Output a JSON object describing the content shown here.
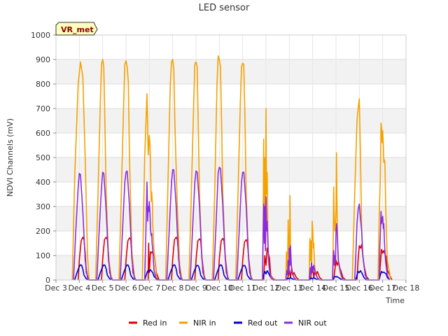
{
  "chart_data": {
    "type": "line",
    "title": "LED sensor",
    "xlabel": "Time",
    "ylabel": "NDVI Channels (mV)",
    "badge": "VR_met",
    "ylim": [
      0,
      1000
    ],
    "yticks": [
      0,
      100,
      200,
      300,
      400,
      500,
      600,
      700,
      800,
      900,
      1000
    ],
    "xlim": [
      3,
      18
    ],
    "xticks": [
      {
        "v": 3,
        "label": "Dec 3"
      },
      {
        "v": 4,
        "label": "Dec 4"
      },
      {
        "v": 5,
        "label": "Dec 5"
      },
      {
        "v": 6,
        "label": "Dec 6"
      },
      {
        "v": 7,
        "label": "Dec 7"
      },
      {
        "v": 8,
        "label": "Dec 8"
      },
      {
        "v": 9,
        "label": "Dec 9"
      },
      {
        "v": 10,
        "label": "Dec 10"
      },
      {
        "v": 11,
        "label": "Dec 11"
      },
      {
        "v": 12,
        "label": "Dec 12"
      },
      {
        "v": 13,
        "label": "Dec 13"
      },
      {
        "v": 14,
        "label": "Dec 14"
      },
      {
        "v": 15,
        "label": "Dec 15"
      },
      {
        "v": 16,
        "label": "Dec 16"
      },
      {
        "v": 17,
        "label": "Dec 17"
      },
      {
        "v": 18,
        "label": "Dec 18"
      }
    ],
    "legend_position": "bottom",
    "series": [
      {
        "name": "Red in",
        "color": "#dd0000",
        "x": [
          3.95,
          4.0,
          4.08,
          4.15,
          4.2,
          4.25,
          4.3,
          4.42,
          4.95,
          5.0,
          5.08,
          5.15,
          5.2,
          5.25,
          5.3,
          5.42,
          5.95,
          6.0,
          6.08,
          6.15,
          6.2,
          6.25,
          6.3,
          6.42,
          6.95,
          6.97,
          7.0,
          7.05,
          7.08,
          7.12,
          7.17,
          7.22,
          7.3,
          7.42,
          7.95,
          8.0,
          8.08,
          8.15,
          8.2,
          8.25,
          8.3,
          8.42,
          8.95,
          9.0,
          9.08,
          9.15,
          9.2,
          9.25,
          9.3,
          9.42,
          9.95,
          10.0,
          10.08,
          10.15,
          10.2,
          10.25,
          10.3,
          10.42,
          10.95,
          11.0,
          11.08,
          11.15,
          11.2,
          11.25,
          11.3,
          11.42,
          11.9,
          11.95,
          12.0,
          12.05,
          12.1,
          12.15,
          12.2,
          12.3,
          12.42,
          12.9,
          12.95,
          13.0,
          13.05,
          13.1,
          13.15,
          13.2,
          13.3,
          13.42,
          13.9,
          13.95,
          14.0,
          14.05,
          14.1,
          14.15,
          14.2,
          14.3,
          14.42,
          14.9,
          14.95,
          15.0,
          15.05,
          15.1,
          15.15,
          15.2,
          15.3,
          15.42,
          15.9,
          15.95,
          16.0,
          16.05,
          16.1,
          16.15,
          16.2,
          16.3,
          16.42,
          16.85,
          16.9,
          16.95,
          17.0,
          17.05,
          17.1,
          17.15,
          17.2,
          17.4
        ],
        "y": [
          0,
          80,
          160,
          175,
          165,
          110,
          30,
          0,
          0,
          85,
          165,
          175,
          165,
          110,
          30,
          0,
          0,
          80,
          160,
          172,
          165,
          110,
          30,
          0,
          0,
          150,
          30,
          115,
          110,
          115,
          105,
          100,
          30,
          0,
          0,
          85,
          165,
          175,
          165,
          110,
          30,
          0,
          0,
          80,
          160,
          168,
          160,
          105,
          30,
          0,
          0,
          85,
          160,
          170,
          160,
          105,
          30,
          0,
          0,
          80,
          155,
          165,
          155,
          100,
          30,
          0,
          0,
          100,
          60,
          130,
          110,
          90,
          20,
          5,
          0,
          0,
          15,
          40,
          10,
          50,
          20,
          30,
          10,
          0,
          0,
          30,
          50,
          10,
          40,
          20,
          35,
          10,
          0,
          0,
          40,
          80,
          60,
          75,
          50,
          40,
          10,
          0,
          0,
          90,
          140,
          130,
          145,
          100,
          60,
          15,
          0,
          0,
          60,
          125,
          110,
          120,
          105,
          95,
          40,
          0
        ]
      },
      {
        "name": "NIR in",
        "color": "#f5a100",
        "x": [
          3.7,
          3.8,
          3.95,
          4.05,
          4.15,
          4.25,
          4.35,
          4.42,
          4.7,
          4.8,
          4.9,
          4.95,
          5.0,
          5.05,
          5.1,
          5.15,
          5.25,
          5.35,
          5.42,
          5.7,
          5.8,
          5.9,
          5.95,
          6.0,
          6.05,
          6.1,
          6.15,
          6.25,
          6.35,
          6.42,
          6.7,
          6.8,
          6.9,
          6.95,
          6.98,
          7.0,
          7.03,
          7.05,
          7.08,
          7.1,
          7.13,
          7.15,
          7.2,
          7.3,
          7.35,
          7.7,
          7.8,
          7.9,
          7.95,
          8.0,
          8.05,
          8.1,
          8.2,
          8.3,
          8.4,
          8.7,
          8.8,
          8.9,
          8.95,
          9.0,
          9.05,
          9.1,
          9.15,
          9.25,
          9.35,
          9.42,
          9.7,
          9.8,
          9.9,
          9.95,
          10.0,
          10.05,
          10.1,
          10.15,
          10.25,
          10.35,
          10.42,
          10.7,
          10.8,
          10.9,
          10.95,
          11.0,
          11.05,
          11.1,
          11.15,
          11.25,
          11.35,
          11.42,
          11.85,
          11.88,
          11.9,
          11.92,
          11.95,
          11.97,
          12.0,
          12.02,
          12.05,
          12.08,
          12.12,
          12.18,
          12.3,
          12.85,
          12.88,
          12.9,
          12.92,
          12.95,
          12.98,
          13.0,
          13.03,
          13.05,
          13.08,
          13.12,
          13.2,
          13.3,
          13.85,
          13.88,
          13.9,
          13.93,
          13.95,
          13.98,
          14.0,
          14.03,
          14.05,
          14.08,
          14.12,
          14.2,
          14.3,
          14.85,
          14.88,
          14.9,
          14.92,
          14.95,
          14.98,
          15.0,
          15.02,
          15.05,
          15.08,
          15.12,
          15.2,
          15.3,
          15.7,
          15.8,
          15.9,
          15.95,
          16.0,
          16.05,
          16.1,
          16.15,
          16.25,
          16.35,
          16.8,
          16.85,
          16.9,
          16.93,
          16.95,
          16.98,
          17.0,
          17.03,
          17.05,
          17.08,
          17.1,
          17.13,
          17.2,
          17.35
        ],
        "y": [
          0,
          420,
          800,
          890,
          830,
          500,
          100,
          0,
          0,
          350,
          720,
          880,
          900,
          870,
          620,
          350,
          100,
          20,
          0,
          0,
          350,
          720,
          880,
          895,
          870,
          810,
          500,
          120,
          20,
          0,
          0,
          500,
          760,
          510,
          560,
          590,
          550,
          480,
          320,
          360,
          310,
          220,
          120,
          20,
          0,
          0,
          400,
          800,
          890,
          900,
          860,
          620,
          300,
          60,
          0,
          0,
          350,
          720,
          880,
          890,
          870,
          620,
          350,
          100,
          20,
          0,
          0,
          350,
          800,
          915,
          900,
          870,
          620,
          350,
          100,
          20,
          0,
          0,
          350,
          720,
          870,
          885,
          880,
          650,
          350,
          100,
          20,
          0,
          0,
          250,
          575,
          200,
          500,
          120,
          700,
          350,
          440,
          180,
          60,
          20,
          0,
          0,
          115,
          80,
          40,
          245,
          100,
          40,
          345,
          120,
          60,
          30,
          10,
          0,
          0,
          170,
          80,
          160,
          40,
          240,
          210,
          130,
          150,
          60,
          30,
          10,
          0,
          0,
          150,
          380,
          280,
          200,
          220,
          280,
          520,
          240,
          130,
          60,
          20,
          0,
          0,
          350,
          650,
          700,
          740,
          500,
          200,
          100,
          20,
          0,
          0,
          250,
          420,
          640,
          620,
          560,
          610,
          540,
          480,
          490,
          470,
          300,
          80,
          0
        ]
      },
      {
        "name": "Red out",
        "color": "#0000cc",
        "x": [
          3.8,
          3.9,
          4.0,
          4.05,
          4.1,
          4.15,
          4.2,
          4.3,
          4.42,
          4.8,
          4.9,
          5.0,
          5.05,
          5.1,
          5.15,
          5.2,
          5.3,
          5.42,
          5.8,
          5.9,
          6.0,
          6.05,
          6.1,
          6.15,
          6.2,
          6.3,
          6.42,
          6.8,
          6.9,
          6.95,
          7.0,
          7.05,
          7.1,
          7.15,
          7.2,
          7.3,
          7.42,
          7.8,
          7.9,
          8.0,
          8.05,
          8.1,
          8.15,
          8.2,
          8.3,
          8.42,
          8.8,
          8.9,
          9.0,
          9.05,
          9.1,
          9.15,
          9.2,
          9.3,
          9.42,
          9.8,
          9.9,
          10.0,
          10.05,
          10.1,
          10.15,
          10.2,
          10.3,
          10.42,
          10.8,
          10.9,
          11.0,
          11.05,
          11.1,
          11.15,
          11.2,
          11.3,
          11.42,
          11.85,
          11.9,
          11.95,
          12.0,
          12.05,
          12.1,
          12.15,
          12.2,
          12.3,
          12.85,
          12.9,
          12.95,
          13.0,
          13.05,
          13.1,
          13.15,
          13.2,
          13.3,
          13.85,
          13.9,
          13.95,
          14.0,
          14.05,
          14.1,
          14.15,
          14.2,
          14.3,
          14.85,
          14.9,
          14.95,
          15.0,
          15.05,
          15.1,
          15.15,
          15.2,
          15.3,
          15.85,
          15.9,
          15.95,
          16.0,
          16.05,
          16.1,
          16.15,
          16.2,
          16.3,
          16.85,
          16.9,
          16.95,
          17.0,
          17.05,
          17.1,
          17.15,
          17.2,
          17.3
        ],
        "y": [
          0,
          30,
          55,
          62,
          60,
          45,
          20,
          5,
          0,
          0,
          30,
          55,
          62,
          60,
          45,
          20,
          5,
          0,
          0,
          30,
          55,
          62,
          60,
          45,
          20,
          5,
          0,
          0,
          30,
          40,
          35,
          42,
          35,
          30,
          15,
          5,
          0,
          0,
          30,
          55,
          62,
          60,
          45,
          20,
          5,
          0,
          0,
          30,
          55,
          60,
          58,
          45,
          20,
          5,
          0,
          0,
          30,
          55,
          62,
          60,
          45,
          20,
          5,
          0,
          0,
          30,
          55,
          60,
          58,
          45,
          20,
          5,
          0,
          0,
          20,
          35,
          25,
          38,
          30,
          20,
          10,
          0,
          0,
          5,
          8,
          4,
          10,
          6,
          4,
          2,
          0,
          0,
          5,
          8,
          4,
          10,
          6,
          4,
          2,
          0,
          0,
          8,
          15,
          12,
          14,
          10,
          8,
          4,
          0,
          0,
          20,
          35,
          30,
          38,
          30,
          20,
          10,
          0,
          0,
          20,
          35,
          30,
          32,
          28,
          25,
          10,
          0
        ]
      },
      {
        "name": "NIR out",
        "color": "#8a2be2",
        "x": [
          3.75,
          3.85,
          3.95,
          4.0,
          4.05,
          4.15,
          4.25,
          4.35,
          4.42,
          4.75,
          4.85,
          4.95,
          5.0,
          5.05,
          5.15,
          5.25,
          5.35,
          5.42,
          5.75,
          5.85,
          5.95,
          6.0,
          6.05,
          6.15,
          6.25,
          6.35,
          6.42,
          6.8,
          6.85,
          6.9,
          6.93,
          6.95,
          6.98,
          7.0,
          7.03,
          7.05,
          7.08,
          7.1,
          7.12,
          7.15,
          7.2,
          7.3,
          7.75,
          7.85,
          7.95,
          8.0,
          8.05,
          8.15,
          8.25,
          8.35,
          8.42,
          8.75,
          8.85,
          8.95,
          9.0,
          9.05,
          9.15,
          9.25,
          9.35,
          9.42,
          9.75,
          9.85,
          9.9,
          9.95,
          10.0,
          10.05,
          10.15,
          10.25,
          10.35,
          10.42,
          10.75,
          10.85,
          10.95,
          11.0,
          11.05,
          11.15,
          11.25,
          11.35,
          11.42,
          11.85,
          11.88,
          11.9,
          11.93,
          11.95,
          11.98,
          12.0,
          12.03,
          12.05,
          12.1,
          12.15,
          12.2,
          12.3,
          12.85,
          12.9,
          12.93,
          12.95,
          12.98,
          13.0,
          13.03,
          13.05,
          13.08,
          13.12,
          13.2,
          13.3,
          13.85,
          13.9,
          13.93,
          13.95,
          13.98,
          14.0,
          14.03,
          14.05,
          14.08,
          14.12,
          14.2,
          14.3,
          14.85,
          14.88,
          14.9,
          14.93,
          14.95,
          14.98,
          15.0,
          15.03,
          15.05,
          15.1,
          15.2,
          15.3,
          15.8,
          15.85,
          15.9,
          15.95,
          16.0,
          16.05,
          16.1,
          16.15,
          16.25,
          16.35,
          16.85,
          16.88,
          16.9,
          16.93,
          16.95,
          16.98,
          17.0,
          17.03,
          17.05,
          17.08,
          17.12,
          17.2,
          17.3
        ],
        "y": [
          0,
          200,
          380,
          435,
          430,
          280,
          80,
          10,
          0,
          0,
          200,
          380,
          440,
          435,
          280,
          80,
          10,
          0,
          0,
          200,
          400,
          440,
          445,
          300,
          90,
          10,
          0,
          0,
          180,
          400,
          240,
          300,
          280,
          320,
          270,
          210,
          180,
          190,
          150,
          120,
          40,
          0,
          0,
          200,
          400,
          450,
          450,
          300,
          90,
          10,
          0,
          0,
          200,
          400,
          445,
          440,
          300,
          90,
          10,
          0,
          0,
          200,
          320,
          440,
          460,
          455,
          300,
          90,
          10,
          0,
          0,
          200,
          400,
          440,
          440,
          300,
          90,
          10,
          0,
          0,
          190,
          310,
          150,
          300,
          120,
          340,
          200,
          240,
          100,
          40,
          10,
          0,
          0,
          40,
          20,
          80,
          30,
          130,
          60,
          140,
          70,
          30,
          10,
          0,
          0,
          50,
          20,
          70,
          30,
          55,
          40,
          60,
          45,
          25,
          10,
          0,
          0,
          80,
          120,
          60,
          100,
          80,
          200,
          230,
          190,
          80,
          30,
          0,
          0,
          100,
          230,
          290,
          310,
          250,
          200,
          100,
          20,
          0,
          0,
          140,
          180,
          280,
          230,
          250,
          260,
          210,
          230,
          150,
          80,
          20,
          0
        ]
      }
    ]
  }
}
